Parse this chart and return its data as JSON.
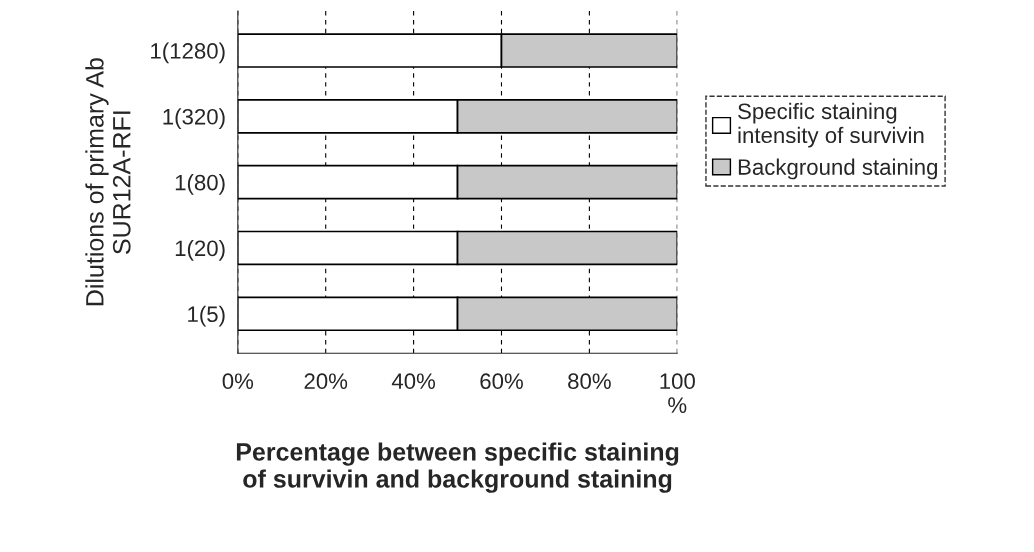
{
  "chart_data": {
    "type": "bar",
    "orientation": "horizontal",
    "stacked": true,
    "categories": [
      "1(1280)",
      "1(320)",
      "1(80)",
      "1(20)",
      "1(5)"
    ],
    "series": [
      {
        "name": "Specific staining intensity of survivin",
        "color": "#ffffff",
        "values": [
          60,
          50,
          50,
          50,
          50
        ]
      },
      {
        "name": "Background staining",
        "color": "#c8c8c8",
        "values": [
          40,
          50,
          50,
          50,
          50
        ]
      }
    ],
    "xlim": [
      0,
      100
    ],
    "xticks": [
      {
        "value": 0,
        "label": "0%"
      },
      {
        "value": 20,
        "label": "20%"
      },
      {
        "value": 40,
        "label": "40%"
      },
      {
        "value": 60,
        "label": "60%"
      },
      {
        "value": 80,
        "label": "80%"
      },
      {
        "value": 100,
        "label": "100\n%"
      }
    ],
    "xlabel": "Percentage between specific staining\nof survivin and background staining",
    "ylabel": "Dilutions of primary Ab\nSUR12A-RFI",
    "grid": "x",
    "legend": "right"
  }
}
